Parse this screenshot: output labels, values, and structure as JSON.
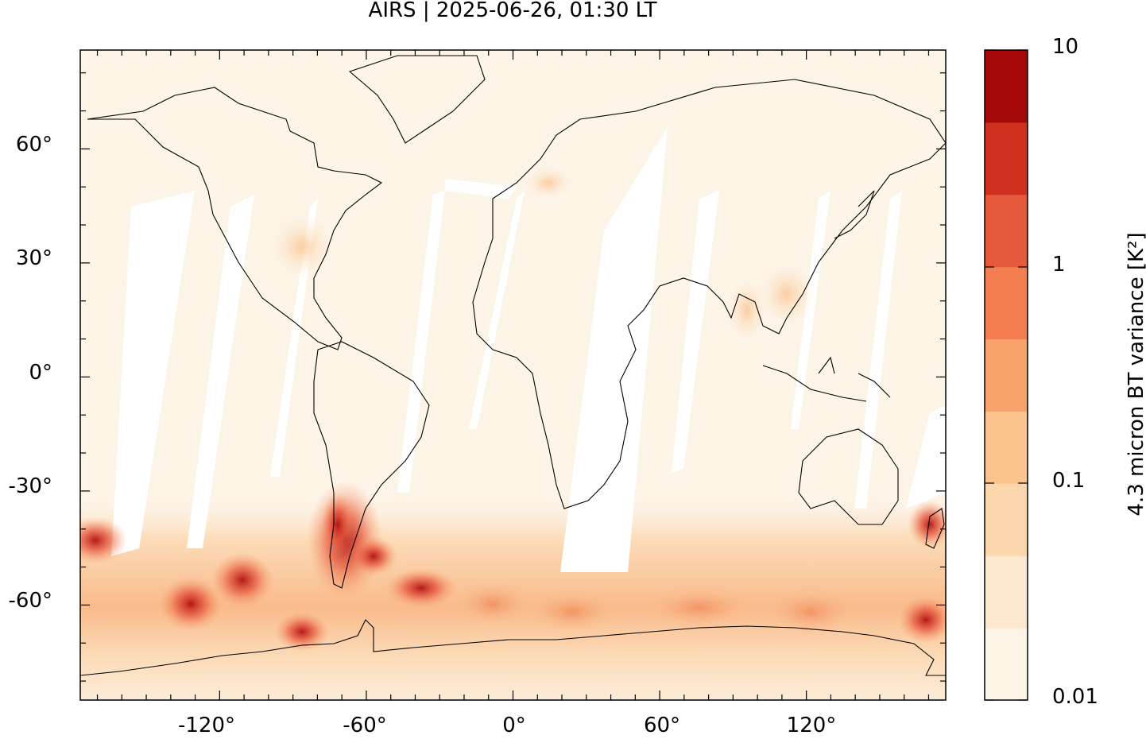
{
  "map": {
    "title": "AIRS | 2025-06-26, 01:30 LT",
    "lat_ticks": [
      "60°",
      "30°",
      "0°",
      "-30°",
      "-60°"
    ],
    "lon_ticks": [
      "-120°",
      "-60°",
      "0°",
      "60°",
      "120°"
    ],
    "extent": {
      "lon": [
        -177,
        177
      ],
      "lat": [
        -85,
        86
      ]
    },
    "colormap": "light orange to dark red",
    "hotspots": [
      {
        "region": "southern South America / Patagonia",
        "lon": -68,
        "lat": -45,
        "level": "high"
      },
      {
        "region": "Southern Ocean south of Australia",
        "lon": 150,
        "lat": -67,
        "level": "high"
      },
      {
        "region": "South Pacific",
        "lon": -110,
        "lat": -55,
        "level": "high"
      },
      {
        "region": "Bellingshausen Sea",
        "lon": -85,
        "lat": -68,
        "level": "high"
      }
    ]
  },
  "colorbar": {
    "label": "4.3 micron BT variance [K²]",
    "tick_labels": [
      "10",
      "1",
      "0.1",
      "0.01"
    ],
    "colors": [
      "#fdf4e8",
      "#fce7cf",
      "#fbd6ad",
      "#fbc38e",
      "#f9a26b",
      "#f47e52",
      "#e55a3b",
      "#d0301f",
      "#a50808"
    ]
  }
}
